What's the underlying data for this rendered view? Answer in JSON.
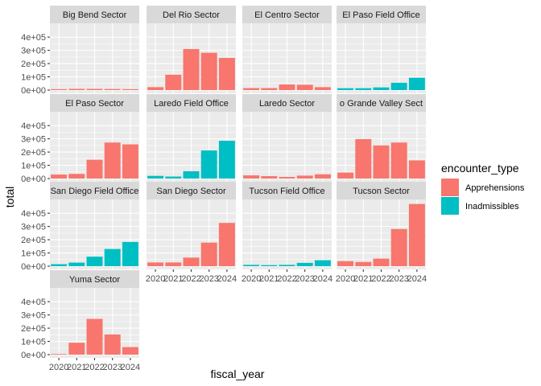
{
  "chart_data": {
    "type": "bar",
    "xlabel": "fiscal_year",
    "ylabel": "total",
    "categories": [
      "2020",
      "2021",
      "2022",
      "2023",
      "2024"
    ],
    "ylim": [
      0,
      480000
    ],
    "y_ticks": [
      0,
      100000,
      200000,
      300000,
      400000
    ],
    "y_tick_labels": [
      "0e+00",
      "1e+05",
      "2e+05",
      "3e+05",
      "4e+05"
    ],
    "facets": [
      "Big Bend Sector",
      "Del Rio Sector",
      "El Centro Sector",
      "El Paso Field Office",
      "El Paso Sector",
      "Laredo Field Office",
      "Laredo Sector",
      "Rio Grande Valley Sector",
      "San Diego Field Office",
      "San Diego Sector",
      "Tucson Field Office",
      "Tucson Sector",
      "Yuma Sector"
    ],
    "facet_labels": [
      "Big Bend Sector",
      "Del Rio Sector",
      "El Centro Sector",
      "El Paso Field Office",
      "El Paso Sector",
      "Laredo Field Office",
      "Laredo Sector",
      "o Grande Valley Sect",
      "San Diego Field Office",
      "San Diego Sector",
      "Tucson Field Office",
      "Tucson Sector",
      "Yuma Sector"
    ],
    "facet_type": [
      "Apprehensions",
      "Apprehensions",
      "Apprehensions",
      "Inadmissibles",
      "Apprehensions",
      "Inadmissibles",
      "Apprehensions",
      "Apprehensions",
      "Inadmissibles",
      "Apprehensions",
      "Inadmissibles",
      "Apprehensions",
      "Apprehensions"
    ],
    "facet_values": [
      [
        7000,
        9000,
        9000,
        8000,
        7000
      ],
      [
        22000,
        116000,
        310000,
        282000,
        243000
      ],
      [
        15000,
        15000,
        42000,
        40000,
        22000
      ],
      [
        14000,
        14000,
        20000,
        55000,
        93000
      ],
      [
        30000,
        35000,
        142000,
        272000,
        258000
      ],
      [
        20000,
        15000,
        55000,
        212000,
        285000
      ],
      [
        24000,
        18000,
        12000,
        22000,
        32000
      ],
      [
        45000,
        298000,
        250000,
        272000,
        137000
      ],
      [
        15000,
        27000,
        72000,
        130000,
        183000
      ],
      [
        28000,
        28000,
        65000,
        178000,
        327000
      ],
      [
        10000,
        8000,
        10000,
        25000,
        45000
      ],
      [
        38000,
        32000,
        57000,
        281000,
        470000
      ],
      [
        5000,
        90000,
        270000,
        152000,
        57000
      ]
    ],
    "legend": {
      "title": "encounter_type",
      "position": "right",
      "entries": [
        {
          "label": "Apprehensions",
          "color": "#F8766D"
        },
        {
          "label": "Inadmissibles",
          "color": "#00BFC4"
        }
      ]
    },
    "grid": true
  }
}
